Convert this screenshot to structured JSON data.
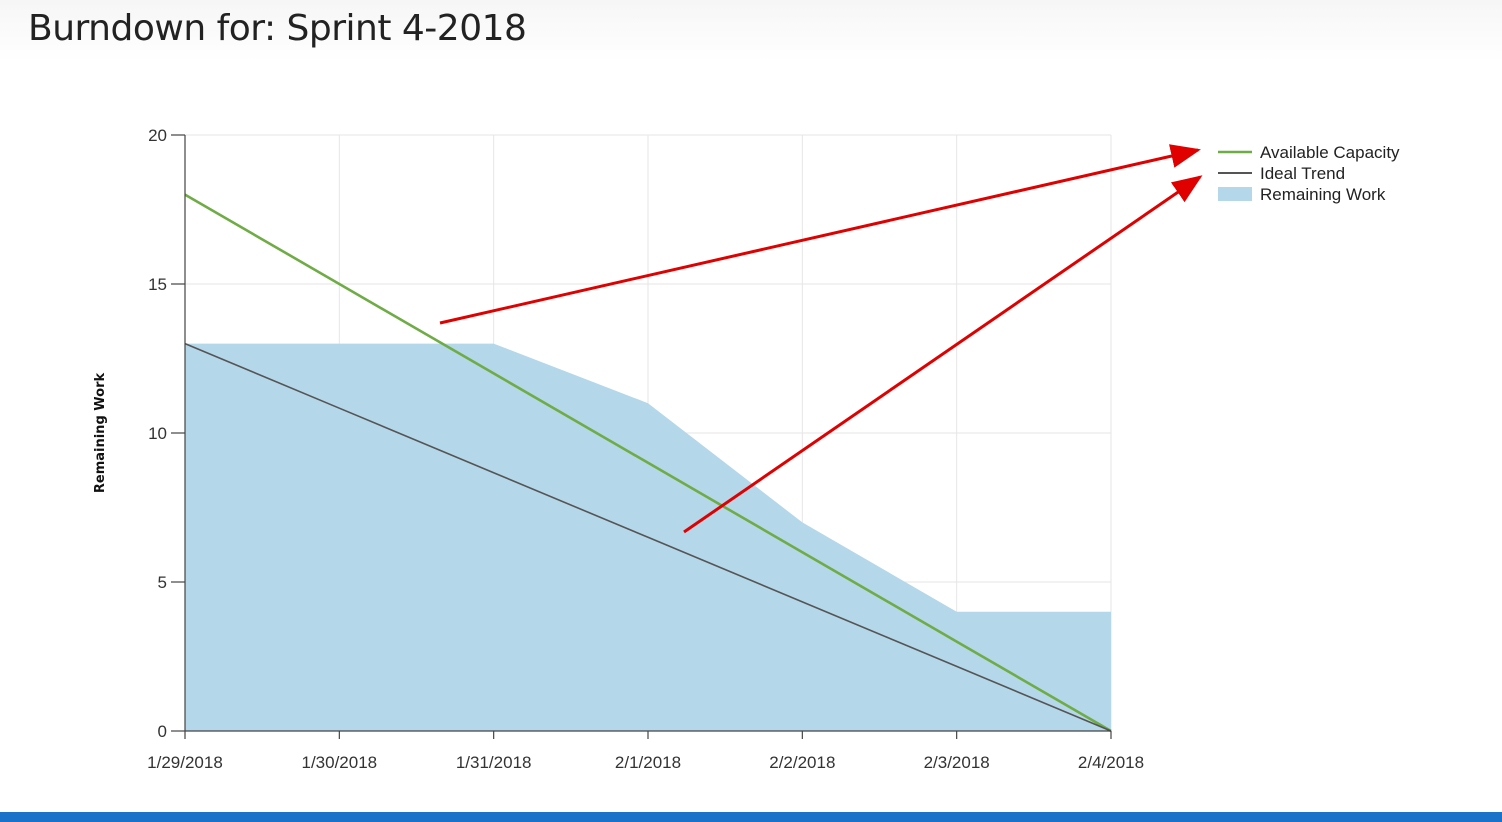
{
  "page": {
    "title": "Burndown for: Sprint 4-2018",
    "bottom_bar_color": "#1a73c9"
  },
  "chart_data": {
    "type": "area",
    "title": "",
    "xlabel": "",
    "ylabel": "Remaining Work",
    "categories": [
      "1/29/2018",
      "1/30/2018",
      "1/31/2018",
      "2/1/2018",
      "2/2/2018",
      "2/3/2018",
      "2/4/2018"
    ],
    "ylim": [
      0,
      20
    ],
    "yticks": [
      0,
      5,
      10,
      15,
      20
    ],
    "grid": true,
    "legend_position": "right",
    "series": [
      {
        "name": "Available Capacity",
        "kind": "line",
        "color": "#6fac46",
        "values": [
          18,
          15,
          12,
          9,
          6,
          3,
          0
        ]
      },
      {
        "name": "Ideal Trend",
        "kind": "line",
        "color": "#555555",
        "values": [
          13,
          10.833,
          8.667,
          6.5,
          4.333,
          2.167,
          0
        ]
      },
      {
        "name": "Remaining Work",
        "kind": "area",
        "color": "#b4d7ea",
        "values": [
          13,
          13,
          13,
          11,
          7,
          4,
          4
        ]
      }
    ],
    "annotations": [
      {
        "type": "arrow",
        "color": "#e00000",
        "from": "Available Capacity line",
        "to": "Available Capacity legend entry"
      },
      {
        "type": "arrow",
        "color": "#e00000",
        "from": "Ideal Trend line",
        "to": "Ideal Trend legend entry"
      }
    ]
  }
}
